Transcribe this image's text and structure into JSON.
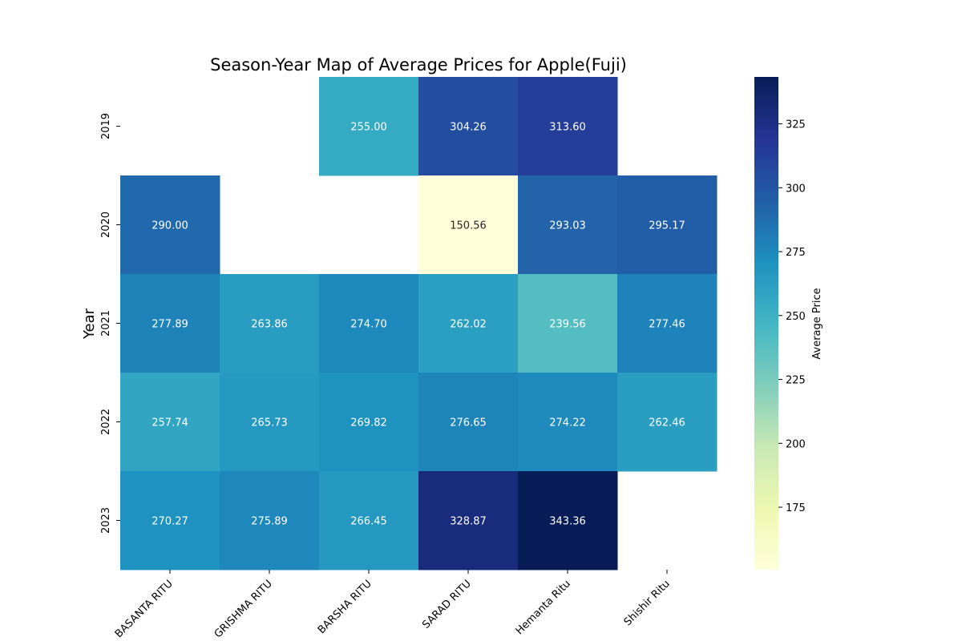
{
  "chart_data": {
    "type": "heatmap",
    "title": "Season-Year Map of Average Prices for Apple(Fuji)",
    "xlabel": "",
    "ylabel": "Year",
    "x_categories": [
      "BASANTA RITU",
      "GRISHMA RITU",
      "BARSHA RITU",
      "SARAD RITU",
      "Hemanta Ritu",
      "Shishir Ritu"
    ],
    "y_categories": [
      "2019",
      "2020",
      "2021",
      "2022",
      "2023"
    ],
    "values": [
      [
        null,
        null,
        255.0,
        304.26,
        313.6,
        null
      ],
      [
        290.0,
        null,
        null,
        150.56,
        293.03,
        295.17
      ],
      [
        277.89,
        263.86,
        274.7,
        262.02,
        239.56,
        277.46
      ],
      [
        257.74,
        265.73,
        269.82,
        276.65,
        274.22,
        262.46
      ],
      [
        270.27,
        275.89,
        266.45,
        328.87,
        343.36,
        null
      ]
    ],
    "colormap": "YlGnBu",
    "colorbar": {
      "label": "Average Price",
      "range": [
        150.56,
        343.36
      ],
      "ticks": [
        175,
        200,
        225,
        250,
        275,
        300,
        325
      ]
    },
    "annotations": "cell values shown with 2 decimals",
    "grid": false
  }
}
